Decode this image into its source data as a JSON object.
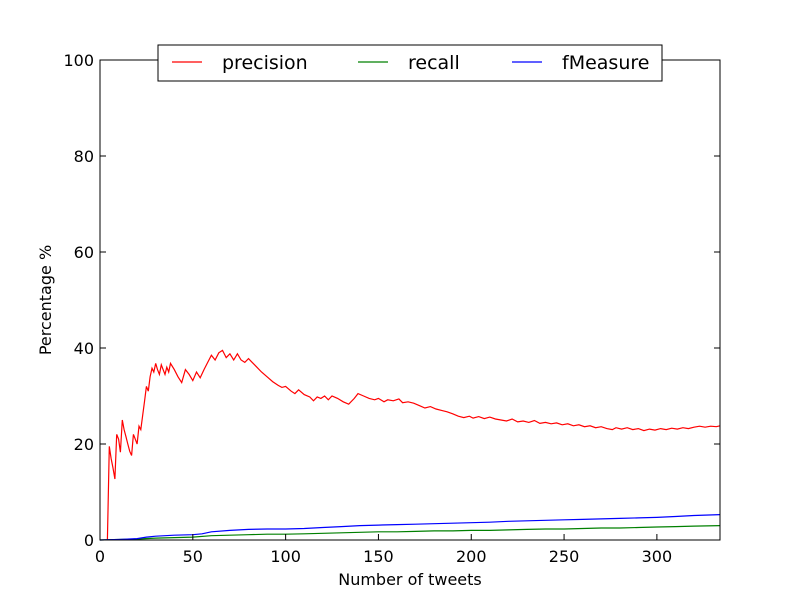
{
  "chart_data": {
    "type": "line",
    "title": "",
    "xlabel": "Number of tweets",
    "ylabel": "Percentage %",
    "xlim": [
      0,
      334
    ],
    "ylim": [
      0,
      100
    ],
    "xticks": [
      0,
      50,
      100,
      150,
      200,
      250,
      300
    ],
    "yticks": [
      0,
      20,
      40,
      60,
      80,
      100
    ],
    "grid": false,
    "legend": {
      "position": "top-center",
      "columns": 3
    },
    "series": [
      {
        "name": "precision",
        "color": "#ff0000",
        "points": [
          [
            4,
            0
          ],
          [
            5,
            19.5
          ],
          [
            6,
            17
          ],
          [
            7,
            15
          ],
          [
            8,
            12.7
          ],
          [
            9,
            22
          ],
          [
            10,
            21
          ],
          [
            11,
            18.3
          ],
          [
            12,
            25
          ],
          [
            13,
            23
          ],
          [
            14,
            21.5
          ],
          [
            15,
            20
          ],
          [
            16,
            18.5
          ],
          [
            17,
            17.6
          ],
          [
            18,
            22
          ],
          [
            19,
            21
          ],
          [
            20,
            20
          ],
          [
            21,
            23.7
          ],
          [
            22,
            23
          ],
          [
            23,
            26
          ],
          [
            24,
            29
          ],
          [
            25,
            32
          ],
          [
            26,
            31
          ],
          [
            27,
            34
          ],
          [
            28,
            35.8
          ],
          [
            29,
            35
          ],
          [
            30,
            36.8
          ],
          [
            31,
            35.5
          ],
          [
            32,
            34.5
          ],
          [
            33,
            36.5
          ],
          [
            34,
            35.5
          ],
          [
            35,
            34.5
          ],
          [
            36,
            36
          ],
          [
            37,
            35
          ],
          [
            38,
            36.8
          ],
          [
            40,
            35.5
          ],
          [
            42,
            34
          ],
          [
            44,
            32.8
          ],
          [
            46,
            35.5
          ],
          [
            48,
            34.5
          ],
          [
            50,
            33.2
          ],
          [
            52,
            35
          ],
          [
            54,
            33.8
          ],
          [
            56,
            35.5
          ],
          [
            58,
            37
          ],
          [
            60,
            38.5
          ],
          [
            62,
            37.5
          ],
          [
            64,
            39
          ],
          [
            66,
            39.5
          ],
          [
            68,
            38
          ],
          [
            70,
            38.8
          ],
          [
            72,
            37.5
          ],
          [
            74,
            38.8
          ],
          [
            76,
            37.5
          ],
          [
            78,
            37
          ],
          [
            80,
            37.8
          ],
          [
            82,
            37
          ],
          [
            84,
            36.2
          ],
          [
            87,
            35
          ],
          [
            90,
            34
          ],
          [
            93,
            33
          ],
          [
            96,
            32.2
          ],
          [
            98,
            31.8
          ],
          [
            100,
            32
          ],
          [
            103,
            31
          ],
          [
            105,
            30.5
          ],
          [
            107,
            31.3
          ],
          [
            110,
            30.3
          ],
          [
            113,
            29.8
          ],
          [
            115,
            29
          ],
          [
            117,
            29.8
          ],
          [
            119,
            29.5
          ],
          [
            121,
            30
          ],
          [
            123,
            29.2
          ],
          [
            125,
            30
          ],
          [
            128,
            29.5
          ],
          [
            131,
            28.8
          ],
          [
            134,
            28.3
          ],
          [
            137,
            29.5
          ],
          [
            139,
            30.5
          ],
          [
            142,
            30
          ],
          [
            145,
            29.5
          ],
          [
            148,
            29.2
          ],
          [
            150,
            29.5
          ],
          [
            153,
            28.8
          ],
          [
            155,
            29.2
          ],
          [
            158,
            29
          ],
          [
            161,
            29.4
          ],
          [
            163,
            28.6
          ],
          [
            166,
            28.8
          ],
          [
            169,
            28.5
          ],
          [
            172,
            28
          ],
          [
            175,
            27.5
          ],
          [
            178,
            27.8
          ],
          [
            181,
            27.3
          ],
          [
            184,
            27
          ],
          [
            187,
            26.7
          ],
          [
            190,
            26.3
          ],
          [
            193,
            25.8
          ],
          [
            196,
            25.5
          ],
          [
            199,
            25.8
          ],
          [
            201,
            25.4
          ],
          [
            204,
            25.7
          ],
          [
            207,
            25.3
          ],
          [
            210,
            25.6
          ],
          [
            213,
            25.2
          ],
          [
            216,
            25
          ],
          [
            219,
            24.8
          ],
          [
            222,
            25.2
          ],
          [
            225,
            24.6
          ],
          [
            228,
            24.8
          ],
          [
            231,
            24.5
          ],
          [
            234,
            24.9
          ],
          [
            237,
            24.3
          ],
          [
            240,
            24.5
          ],
          [
            243,
            24.2
          ],
          [
            246,
            24.4
          ],
          [
            249,
            24
          ],
          [
            252,
            24.2
          ],
          [
            255,
            23.8
          ],
          [
            258,
            24
          ],
          [
            261,
            23.6
          ],
          [
            264,
            23.8
          ],
          [
            267,
            23.4
          ],
          [
            270,
            23.6
          ],
          [
            273,
            23.2
          ],
          [
            276,
            23
          ],
          [
            278,
            23.4
          ],
          [
            281,
            23.1
          ],
          [
            284,
            23.4
          ],
          [
            287,
            23
          ],
          [
            290,
            23.2
          ],
          [
            293,
            22.8
          ],
          [
            296,
            23.1
          ],
          [
            299,
            22.9
          ],
          [
            302,
            23.2
          ],
          [
            305,
            23
          ],
          [
            308,
            23.3
          ],
          [
            311,
            23.1
          ],
          [
            314,
            23.4
          ],
          [
            317,
            23.2
          ],
          [
            320,
            23.5
          ],
          [
            323,
            23.7
          ],
          [
            326,
            23.5
          ],
          [
            329,
            23.7
          ],
          [
            332,
            23.6
          ],
          [
            334,
            23.8
          ]
        ]
      },
      {
        "name": "recall",
        "color": "#008000",
        "points": [
          [
            0,
            0
          ],
          [
            10,
            0.1
          ],
          [
            20,
            0.2
          ],
          [
            30,
            0.4
          ],
          [
            40,
            0.5
          ],
          [
            50,
            0.6
          ],
          [
            60,
            0.9
          ],
          [
            70,
            1.0
          ],
          [
            80,
            1.1
          ],
          [
            90,
            1.2
          ],
          [
            100,
            1.2
          ],
          [
            110,
            1.3
          ],
          [
            120,
            1.4
          ],
          [
            130,
            1.5
          ],
          [
            140,
            1.6
          ],
          [
            150,
            1.7
          ],
          [
            160,
            1.7
          ],
          [
            170,
            1.8
          ],
          [
            180,
            1.9
          ],
          [
            190,
            1.9
          ],
          [
            200,
            2.0
          ],
          [
            210,
            2.0
          ],
          [
            220,
            2.1
          ],
          [
            230,
            2.2
          ],
          [
            240,
            2.3
          ],
          [
            250,
            2.3
          ],
          [
            260,
            2.4
          ],
          [
            270,
            2.5
          ],
          [
            280,
            2.5
          ],
          [
            290,
            2.6
          ],
          [
            300,
            2.7
          ],
          [
            310,
            2.8
          ],
          [
            320,
            2.9
          ],
          [
            334,
            3.0
          ]
        ]
      },
      {
        "name": "fMeasure",
        "color": "#0000ff",
        "points": [
          [
            0,
            0
          ],
          [
            10,
            0.1
          ],
          [
            20,
            0.3
          ],
          [
            25,
            0.6
          ],
          [
            30,
            0.8
          ],
          [
            40,
            1.0
          ],
          [
            50,
            1.1
          ],
          [
            55,
            1.3
          ],
          [
            60,
            1.7
          ],
          [
            70,
            2.0
          ],
          [
            80,
            2.2
          ],
          [
            90,
            2.3
          ],
          [
            100,
            2.3
          ],
          [
            110,
            2.4
          ],
          [
            120,
            2.6
          ],
          [
            130,
            2.8
          ],
          [
            140,
            3.0
          ],
          [
            150,
            3.1
          ],
          [
            160,
            3.2
          ],
          [
            170,
            3.3
          ],
          [
            180,
            3.4
          ],
          [
            190,
            3.5
          ],
          [
            200,
            3.6
          ],
          [
            210,
            3.7
          ],
          [
            220,
            3.9
          ],
          [
            230,
            4.0
          ],
          [
            240,
            4.1
          ],
          [
            250,
            4.2
          ],
          [
            260,
            4.3
          ],
          [
            270,
            4.4
          ],
          [
            280,
            4.5
          ],
          [
            290,
            4.6
          ],
          [
            300,
            4.7
          ],
          [
            310,
            4.9
          ],
          [
            320,
            5.1
          ],
          [
            334,
            5.3
          ]
        ]
      }
    ]
  }
}
